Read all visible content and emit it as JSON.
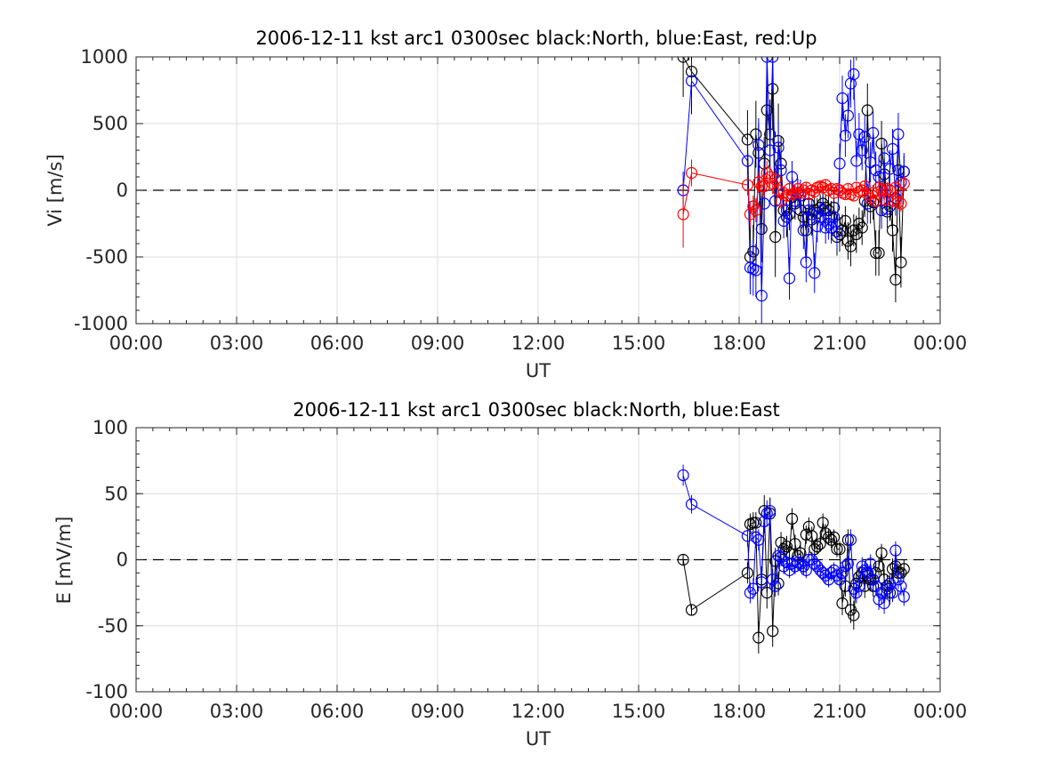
{
  "chart_data": [
    {
      "type": "scatter",
      "title": "2006-12-11 kst arc1 0300sec black:North, blue:East, red:Up",
      "xlabel": "UT",
      "ylabel": "Vi [m/s]",
      "x_unit": "hours UT",
      "xlim": [
        0,
        24
      ],
      "ylim": [
        -1000,
        1000
      ],
      "x_ticks": [
        0,
        3,
        6,
        9,
        12,
        15,
        18,
        21,
        24
      ],
      "x_tick_labels": [
        "00:00",
        "03:00",
        "06:00",
        "09:00",
        "12:00",
        "15:00",
        "18:00",
        "21:00",
        "00:00"
      ],
      "y_ticks": [
        1000,
        500,
        0,
        -500,
        -1000
      ],
      "y_tick_labels": [
        "1000",
        "500",
        "0",
        "-500",
        "-1000"
      ],
      "grid": true,
      "zero_line": true,
      "series": [
        {
          "name": "North",
          "color": "#000000",
          "x": [
            16.33,
            16.58,
            18.25,
            18.33,
            18.42,
            18.5,
            18.58,
            18.67,
            18.75,
            18.83,
            18.92,
            19.0,
            19.08,
            19.17,
            19.25,
            19.33,
            19.42,
            19.5,
            19.58,
            19.67,
            19.75,
            19.83,
            19.92,
            20.0,
            20.08,
            20.17,
            20.25,
            20.33,
            20.42,
            20.5,
            20.58,
            20.67,
            20.75,
            20.83,
            20.92,
            21.0,
            21.08,
            21.17,
            21.25,
            21.33,
            21.42,
            21.5,
            21.58,
            21.67,
            21.75,
            21.83,
            21.92,
            22.0,
            22.08,
            22.17,
            22.25,
            22.33,
            22.42,
            22.5,
            22.58,
            22.67,
            22.75,
            22.83,
            22.92
          ],
          "y": [
            1000,
            890,
            380,
            -500,
            -460,
            420,
            280,
            -290,
            200,
            600,
            420,
            760,
            -350,
            370,
            200,
            -150,
            -200,
            -180,
            -50,
            -100,
            -20,
            -150,
            -200,
            -300,
            -100,
            -220,
            -150,
            -170,
            -130,
            -100,
            -130,
            -150,
            -200,
            -130,
            -350,
            -330,
            -300,
            -230,
            -380,
            -420,
            -300,
            -330,
            -250,
            -280,
            -80,
            600,
            -120,
            -90,
            -470,
            -470,
            350,
            120,
            -160,
            -120,
            -300,
            -670,
            150,
            -540,
            140
          ],
          "yerr": [
            300,
            320,
            220,
            240,
            200,
            250,
            220,
            250,
            200,
            280,
            260,
            300,
            300,
            280,
            200,
            120,
            150,
            120,
            100,
            120,
            100,
            130,
            140,
            160,
            120,
            120,
            100,
            110,
            100,
            100,
            100,
            110,
            120,
            100,
            140,
            130,
            120,
            110,
            140,
            150,
            120,
            140,
            120,
            130,
            120,
            200,
            130,
            130,
            170,
            170,
            170,
            120,
            120,
            110,
            160,
            170,
            180,
            190,
            120
          ]
        },
        {
          "name": "East",
          "color": "#0000ff",
          "x": [
            16.33,
            16.58,
            18.25,
            18.33,
            18.42,
            18.5,
            18.58,
            18.67,
            18.75,
            18.83,
            18.92,
            19.0,
            19.08,
            19.17,
            19.25,
            19.33,
            19.42,
            19.5,
            19.58,
            19.67,
            19.75,
            19.83,
            19.92,
            20.0,
            20.08,
            20.17,
            20.25,
            20.33,
            20.42,
            20.5,
            20.58,
            20.67,
            20.75,
            20.83,
            20.92,
            21.0,
            21.08,
            21.17,
            21.25,
            21.33,
            21.42,
            21.5,
            21.58,
            21.67,
            21.75,
            21.83,
            21.92,
            22.0,
            22.08,
            22.17,
            22.25,
            22.33,
            22.42,
            22.5,
            22.58,
            22.67,
            22.75,
            22.83,
            22.92
          ],
          "y": [
            0,
            820,
            220,
            -580,
            -590,
            -600,
            340,
            -790,
            -100,
            1000,
            300,
            1000,
            -80,
            320,
            150,
            -230,
            -150,
            -660,
            100,
            -80,
            -20,
            -40,
            -300,
            -540,
            -150,
            -180,
            -620,
            -270,
            -200,
            -150,
            -280,
            -250,
            -280,
            -200,
            -310,
            200,
            690,
            410,
            560,
            800,
            870,
            220,
            420,
            300,
            400,
            -100,
            210,
            430,
            150,
            100,
            -150,
            240,
            -140,
            160,
            310,
            -60,
            420,
            60,
            140
          ],
          "yerr": [
            140,
            150,
            180,
            200,
            200,
            200,
            200,
            220,
            220,
            250,
            220,
            250,
            200,
            200,
            150,
            130,
            140,
            160,
            120,
            120,
            110,
            120,
            140,
            150,
            120,
            120,
            150,
            120,
            120,
            110,
            120,
            120,
            120,
            110,
            130,
            150,
            170,
            160,
            170,
            180,
            190,
            150,
            160,
            150,
            160,
            150,
            150,
            160,
            140,
            140,
            140,
            140,
            130,
            140,
            150,
            130,
            160,
            130,
            140
          ]
        },
        {
          "name": "Up",
          "color": "#ff0000",
          "x": [
            16.33,
            16.58,
            18.25,
            18.33,
            18.42,
            18.5,
            18.58,
            18.67,
            18.75,
            18.83,
            18.92,
            19.0,
            19.08,
            19.17,
            19.25,
            19.33,
            19.42,
            19.5,
            19.58,
            19.67,
            19.75,
            19.83,
            19.92,
            20.0,
            20.08,
            20.17,
            20.25,
            20.33,
            20.42,
            20.5,
            20.58,
            20.67,
            20.75,
            20.83,
            20.92,
            21.0,
            21.08,
            21.17,
            21.25,
            21.33,
            21.42,
            21.5,
            21.58,
            21.67,
            21.75,
            21.83,
            21.92,
            22.0,
            22.08,
            22.17,
            22.25,
            22.33,
            22.42,
            22.5,
            22.58,
            22.67,
            22.75,
            22.83,
            22.92
          ],
          "y": [
            -180,
            130,
            40,
            -180,
            -120,
            -150,
            60,
            30,
            30,
            130,
            100,
            50,
            80,
            0,
            -80,
            -20,
            -40,
            10,
            -30,
            -20,
            10,
            -20,
            0,
            20,
            -30,
            0,
            -10,
            20,
            30,
            20,
            40,
            0,
            10,
            -20,
            10,
            0,
            -20,
            -30,
            10,
            -30,
            -40,
            20,
            -10,
            0,
            30,
            -30,
            -60,
            -20,
            -80,
            20,
            0,
            -70,
            10,
            0,
            -80,
            20,
            -90,
            -100,
            50
          ],
          "yerr": [
            250,
            100,
            80,
            100,
            80,
            90,
            80,
            80,
            80,
            90,
            80,
            80,
            70,
            60,
            60,
            50,
            50,
            50,
            50,
            50,
            40,
            40,
            40,
            40,
            40,
            40,
            40,
            40,
            40,
            40,
            40,
            40,
            40,
            40,
            40,
            40,
            40,
            40,
            40,
            40,
            40,
            40,
            40,
            40,
            40,
            40,
            50,
            50,
            50,
            50,
            50,
            50,
            50,
            50,
            50,
            50,
            50,
            60,
            60
          ]
        }
      ]
    },
    {
      "type": "scatter",
      "title": "2006-12-11 kst arc1 0300sec black:North, blue:East",
      "xlabel": "UT",
      "ylabel": "E [mV/m]",
      "x_unit": "hours UT",
      "xlim": [
        0,
        24
      ],
      "ylim": [
        -100,
        100
      ],
      "x_ticks": [
        0,
        3,
        6,
        9,
        12,
        15,
        18,
        21,
        24
      ],
      "x_tick_labels": [
        "00:00",
        "03:00",
        "06:00",
        "09:00",
        "12:00",
        "15:00",
        "18:00",
        "21:00",
        "00:00"
      ],
      "y_ticks": [
        100,
        50,
        0,
        -50,
        -100
      ],
      "y_tick_labels": [
        "100",
        "50",
        "0",
        "-50",
        "-100"
      ],
      "grid": true,
      "zero_line": true,
      "series": [
        {
          "name": "North",
          "color": "#000000",
          "x": [
            16.33,
            16.58,
            18.25,
            18.33,
            18.42,
            18.5,
            18.58,
            18.67,
            18.75,
            18.83,
            18.92,
            19.0,
            19.08,
            19.17,
            19.25,
            19.33,
            19.42,
            19.5,
            19.58,
            19.67,
            19.75,
            19.83,
            19.92,
            20.0,
            20.08,
            20.17,
            20.25,
            20.33,
            20.42,
            20.5,
            20.58,
            20.67,
            20.75,
            20.83,
            20.92,
            21.0,
            21.08,
            21.17,
            21.25,
            21.33,
            21.42,
            21.5,
            21.58,
            21.67,
            21.75,
            21.83,
            21.92,
            22.0,
            22.08,
            22.17,
            22.25,
            22.33,
            22.42,
            22.5,
            22.58,
            22.67,
            22.75,
            22.83,
            22.92
          ],
          "y": [
            0,
            -38,
            -10,
            27,
            28,
            28,
            -59,
            -15,
            37,
            -25,
            35,
            -54,
            -1,
            -18,
            13,
            8,
            10,
            5,
            31,
            12,
            3,
            5,
            -5,
            19,
            25,
            18,
            8,
            10,
            12,
            28,
            20,
            17,
            15,
            17,
            8,
            8,
            -33,
            -20,
            15,
            -38,
            -42,
            -18,
            -13,
            -10,
            -20,
            -12,
            -15,
            -20,
            -10,
            -5,
            5,
            -15,
            -20,
            -25,
            -7,
            -5,
            -10,
            -10,
            -7
          ],
          "yerr": [
            4,
            4,
            8,
            8,
            8,
            8,
            12,
            10,
            12,
            12,
            12,
            12,
            10,
            9,
            8,
            8,
            8,
            7,
            8,
            7,
            6,
            6,
            6,
            7,
            7,
            7,
            6,
            6,
            6,
            7,
            7,
            6,
            6,
            6,
            6,
            6,
            9,
            8,
            8,
            10,
            11,
            9,
            8,
            8,
            9,
            8,
            8,
            8,
            8,
            7,
            7,
            8,
            8,
            9,
            8,
            7,
            7,
            7,
            7
          ]
        },
        {
          "name": "East",
          "color": "#0000ff",
          "x": [
            16.33,
            16.58,
            18.25,
            18.33,
            18.42,
            18.5,
            18.58,
            18.67,
            18.75,
            18.83,
            18.92,
            19.0,
            19.08,
            19.17,
            19.25,
            19.33,
            19.42,
            19.5,
            19.58,
            19.67,
            19.75,
            19.83,
            19.92,
            20.0,
            20.08,
            20.17,
            20.25,
            20.33,
            20.42,
            20.5,
            20.58,
            20.67,
            20.75,
            20.83,
            20.92,
            21.0,
            21.08,
            21.17,
            21.25,
            21.33,
            21.42,
            21.5,
            21.58,
            21.67,
            21.75,
            21.83,
            21.92,
            22.0,
            22.08,
            22.17,
            22.25,
            22.33,
            22.42,
            22.5,
            22.58,
            22.67,
            22.75,
            22.83,
            22.92
          ],
          "y": [
            64,
            42,
            18,
            -25,
            -22,
            17,
            15,
            -17,
            29,
            35,
            37,
            -15,
            -20,
            3,
            2,
            -5,
            -2,
            -8,
            -3,
            -5,
            -2,
            -3,
            -5,
            -8,
            0,
            0,
            -3,
            -5,
            -8,
            -10,
            -12,
            -15,
            -10,
            -8,
            -12,
            -15,
            -10,
            -5,
            -3,
            15,
            -22,
            -25,
            -20,
            -5,
            -8,
            -10,
            -3,
            -15,
            -20,
            -30,
            -25,
            -33,
            -22,
            -18,
            -25,
            7,
            -15,
            -20,
            -28
          ],
          "yerr": [
            8,
            7,
            8,
            8,
            8,
            8,
            8,
            8,
            9,
            10,
            10,
            8,
            8,
            7,
            7,
            6,
            6,
            6,
            6,
            6,
            6,
            6,
            6,
            6,
            6,
            6,
            6,
            6,
            6,
            6,
            6,
            6,
            6,
            6,
            6,
            6,
            6,
            6,
            6,
            8,
            8,
            8,
            8,
            7,
            7,
            7,
            7,
            7,
            7,
            8,
            8,
            8,
            7,
            7,
            7,
            7,
            7,
            7,
            7
          ]
        }
      ]
    }
  ]
}
